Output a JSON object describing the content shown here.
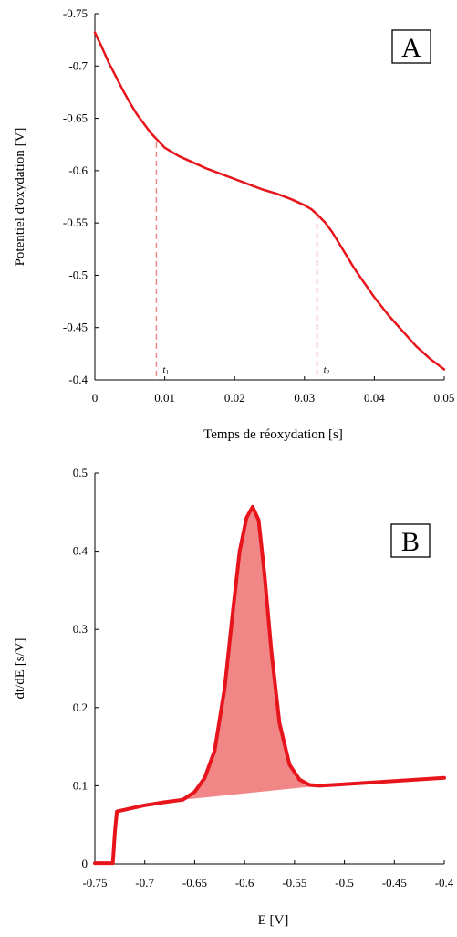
{
  "chart_data": [
    {
      "panel": "A",
      "type": "line",
      "title": "",
      "xlabel": "Temps de réoxydation [s]",
      "ylabel": "Potentiel d'oxydation [V]",
      "xlim": [
        0,
        0.05
      ],
      "ylim": [
        -0.4,
        -0.75
      ],
      "xticks": [
        0,
        0.01,
        0.02,
        0.03,
        0.04,
        0.05
      ],
      "xtick_labels": [
        "0",
        "0.01",
        "0.02",
        "0.03",
        "0.04",
        "0.05"
      ],
      "yticks": [
        -0.75,
        -0.7,
        -0.65,
        -0.6,
        -0.55,
        -0.5,
        -0.45,
        -0.4
      ],
      "ytick_labels": [
        "-0.75",
        "-0.7",
        "-0.65",
        "-0.6",
        "-0.55",
        "-0.5",
        "-0.45",
        "-0.4"
      ],
      "series": [
        {
          "color": "#e8141b",
          "x": [
            0,
            0.001,
            0.002,
            0.003,
            0.004,
            0.005,
            0.006,
            0.007,
            0.008,
            0.009,
            0.01,
            0.012,
            0.014,
            0.016,
            0.018,
            0.02,
            0.022,
            0.024,
            0.026,
            0.028,
            0.03,
            0.031,
            0.032,
            0.033,
            0.034,
            0.035,
            0.036,
            0.037,
            0.038,
            0.04,
            0.042,
            0.044,
            0.046,
            0.048,
            0.05
          ],
          "y": [
            -0.732,
            -0.718,
            -0.703,
            -0.69,
            -0.677,
            -0.665,
            -0.654,
            -0.645,
            -0.636,
            -0.629,
            -0.622,
            -0.614,
            -0.608,
            -0.602,
            -0.597,
            -0.592,
            -0.587,
            -0.582,
            -0.578,
            -0.573,
            -0.567,
            -0.563,
            -0.557,
            -0.55,
            -0.541,
            -0.53,
            -0.519,
            -0.508,
            -0.498,
            -0.479,
            -0.462,
            -0.447,
            -0.432,
            -0.42,
            -0.41
          ]
        }
      ],
      "markers": [
        {
          "label": "t",
          "subscript": "1",
          "x": 0.0088,
          "y": -0.627
        },
        {
          "label": "t",
          "subscript": "2",
          "x": 0.0318,
          "y": -0.558
        }
      ],
      "grid": false,
      "legend": "none"
    },
    {
      "panel": "B",
      "type": "area",
      "title": "",
      "xlabel": "E [V]",
      "ylabel": "dt/dE [s/V]",
      "xlim": [
        -0.75,
        -0.4
      ],
      "ylim": [
        0,
        0.5
      ],
      "xticks": [
        -0.75,
        -0.7,
        -0.65,
        -0.6,
        -0.55,
        -0.5,
        -0.45,
        -0.4
      ],
      "xtick_labels": [
        "-0.75",
        "-0.7",
        "-0.65",
        "-0.6",
        "-0.55",
        "-0.5",
        "-0.45",
        "-0.4"
      ],
      "yticks": [
        0,
        0.1,
        0.2,
        0.3,
        0.4,
        0.5
      ],
      "ytick_labels": [
        "0",
        "0.1",
        "0.2",
        "0.3",
        "0.4",
        "0.5"
      ],
      "series": [
        {
          "color": "#e8141b",
          "x": [
            -0.75,
            -0.732,
            -0.73,
            -0.728,
            -0.7,
            -0.68,
            -0.662,
            -0.65,
            -0.64,
            -0.63,
            -0.62,
            -0.612,
            -0.605,
            -0.598,
            -0.592,
            -0.586,
            -0.58,
            -0.573,
            -0.565,
            -0.555,
            -0.545,
            -0.535,
            -0.525,
            -0.5,
            -0.45,
            -0.4
          ],
          "y": [
            0.001,
            0.001,
            0.04,
            0.067,
            0.075,
            0.079,
            0.082,
            0.092,
            0.11,
            0.145,
            0.225,
            0.32,
            0.4,
            0.443,
            0.457,
            0.44,
            0.37,
            0.27,
            0.18,
            0.127,
            0.108,
            0.101,
            0.1,
            0.102,
            0.106,
            0.11
          ]
        }
      ],
      "shaded_region": {
        "color": "#f08080",
        "x_start": -0.662,
        "x_end": -0.525,
        "baseline_start_y": 0.082,
        "baseline_end_y": 0.1
      },
      "grid": false,
      "legend": "none"
    }
  ]
}
